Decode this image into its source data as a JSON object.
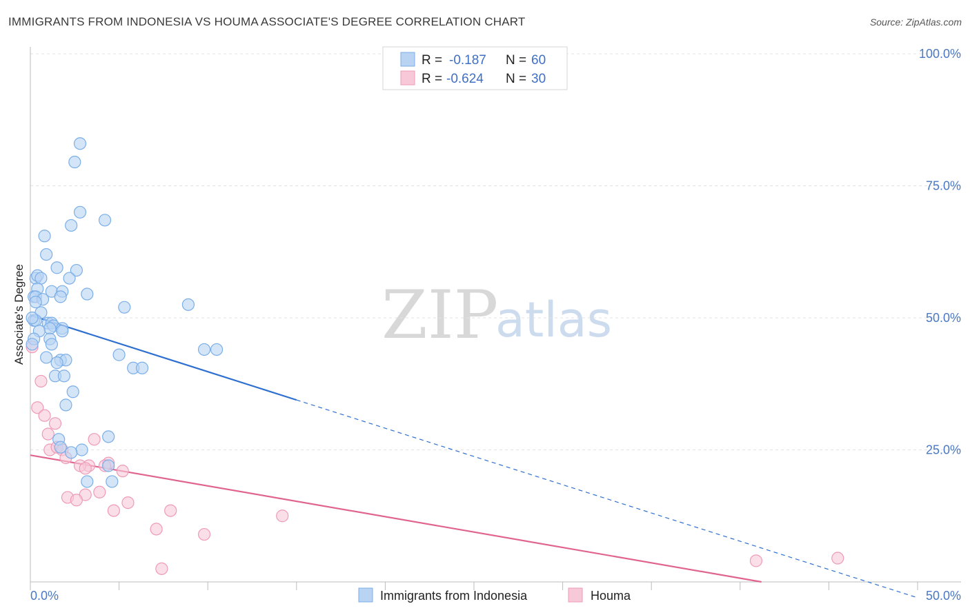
{
  "title": "IMMIGRANTS FROM INDONESIA VS HOUMA ASSOCIATE'S DEGREE CORRELATION CHART",
  "source": "Source: ZipAtlas.com",
  "watermark": {
    "zip": "ZIP",
    "atlas": "atlas"
  },
  "legend": {
    "rows": [
      {
        "r_label": "R =",
        "r_value": "-0.187",
        "n_label": "N =",
        "n_value": "60"
      },
      {
        "r_label": "R =",
        "r_value": "-0.624",
        "n_label": "N =",
        "n_value": "30"
      }
    ]
  },
  "chart_data": {
    "type": "scatter",
    "title": "IMMIGRANTS FROM INDONESIA VS HOUMA ASSOCIATE'S DEGREE CORRELATION CHART",
    "xlabel": "",
    "ylabel": "Associate's Degree",
    "xlim": [
      0,
      50
    ],
    "ylim": [
      0,
      100
    ],
    "x_tick_labels": [
      "0.0%",
      "50.0%"
    ],
    "y_tick_labels": [
      "100.0%",
      "75.0%",
      "50.0%",
      "25.0%"
    ],
    "y_tick_values": [
      100,
      75,
      50,
      25
    ],
    "grid": true,
    "legend_position": "top-center",
    "series": [
      {
        "name": "Immigrants from Indonesia",
        "color": "#7aaee8",
        "fill": "#b9d3f3",
        "line_color": "#2e6fd0",
        "trend": {
          "x_start": 0,
          "y_start": 50.5,
          "x_solid_end": 15,
          "x_end": 50,
          "y_end": -3
        },
        "points": [
          [
            2.8,
            83
          ],
          [
            2.5,
            79.5
          ],
          [
            2.8,
            70
          ],
          [
            2.3,
            67.5
          ],
          [
            4.2,
            68.5
          ],
          [
            0.8,
            65.5
          ],
          [
            0.9,
            62
          ],
          [
            1.5,
            59.5
          ],
          [
            2.6,
            59
          ],
          [
            0.3,
            57.5
          ],
          [
            0.4,
            58
          ],
          [
            0.6,
            57.5
          ],
          [
            2.2,
            57.5
          ],
          [
            0.4,
            55.5
          ],
          [
            1.2,
            55
          ],
          [
            1.8,
            55
          ],
          [
            0.2,
            54
          ],
          [
            0.3,
            54
          ],
          [
            0.7,
            53.5
          ],
          [
            1.7,
            54
          ],
          [
            3.2,
            54.5
          ],
          [
            0.3,
            53
          ],
          [
            5.3,
            52
          ],
          [
            8.9,
            52.5
          ],
          [
            0.6,
            51
          ],
          [
            0.2,
            49.5
          ],
          [
            0.3,
            49.5
          ],
          [
            1.0,
            49
          ],
          [
            1.2,
            49
          ],
          [
            1.3,
            48.5
          ],
          [
            1.8,
            48
          ],
          [
            1.1,
            48
          ],
          [
            0.5,
            47.5
          ],
          [
            1.8,
            47.5
          ],
          [
            0.2,
            46
          ],
          [
            1.1,
            46
          ],
          [
            1.2,
            45
          ],
          [
            9.8,
            44
          ],
          [
            10.5,
            44
          ],
          [
            5.0,
            43
          ],
          [
            0.9,
            42.5
          ],
          [
            1.7,
            42
          ],
          [
            2.0,
            42
          ],
          [
            1.5,
            41.5
          ],
          [
            5.8,
            40.5
          ],
          [
            6.3,
            40.5
          ],
          [
            1.4,
            39
          ],
          [
            1.9,
            39
          ],
          [
            2.4,
            36
          ],
          [
            2.0,
            33.5
          ],
          [
            4.4,
            27.5
          ],
          [
            1.6,
            27
          ],
          [
            1.7,
            25.5
          ],
          [
            2.9,
            25
          ],
          [
            2.3,
            24.5
          ],
          [
            3.2,
            19
          ],
          [
            4.6,
            19
          ],
          [
            4.4,
            22
          ],
          [
            0.1,
            45
          ],
          [
            0.1,
            50
          ]
        ]
      },
      {
        "name": "Houma",
        "color": "#ef9ab6",
        "fill": "#f7c9d8",
        "line_color": "#e0648e",
        "trend": {
          "x_start": 0,
          "y_start": 24,
          "x_solid_end": 41.2,
          "x_end": 41.2,
          "y_end": 0
        },
        "points": [
          [
            0.1,
            44.5
          ],
          [
            0.6,
            38
          ],
          [
            0.4,
            33
          ],
          [
            0.8,
            31.5
          ],
          [
            1.4,
            30
          ],
          [
            1.0,
            28
          ],
          [
            3.6,
            27
          ],
          [
            1.1,
            25
          ],
          [
            1.5,
            25.5
          ],
          [
            1.8,
            25
          ],
          [
            2.0,
            23.5
          ],
          [
            4.4,
            22.5
          ],
          [
            3.3,
            22
          ],
          [
            2.8,
            22
          ],
          [
            3.1,
            21.5
          ],
          [
            5.2,
            21
          ],
          [
            3.9,
            17
          ],
          [
            3.1,
            16.5
          ],
          [
            2.1,
            16
          ],
          [
            2.6,
            15.5
          ],
          [
            5.5,
            15
          ],
          [
            4.7,
            13.5
          ],
          [
            7.9,
            13.5
          ],
          [
            14.2,
            12.5
          ],
          [
            7.1,
            10
          ],
          [
            9.8,
            9
          ],
          [
            7.4,
            2.5
          ],
          [
            40.9,
            4
          ],
          [
            45.5,
            4.5
          ],
          [
            4.2,
            22
          ]
        ]
      }
    ]
  }
}
